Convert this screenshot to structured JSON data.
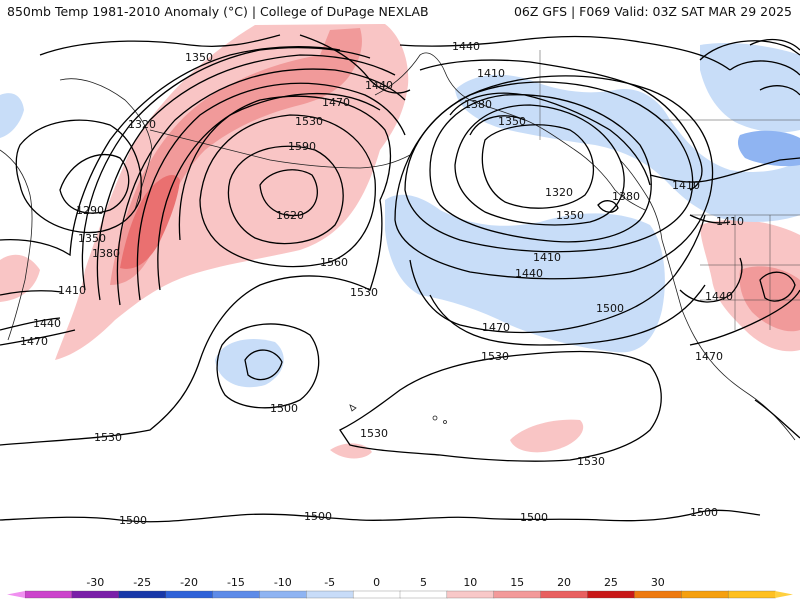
{
  "header": {
    "title_left": "850mb Temp 1981-2010 Anomaly (°C) | College of DuPage NEXLAB",
    "title_right": "06Z GFS | F069 Valid: 03Z SAT MAR 29 2025"
  },
  "contour_labels": [
    {
      "id": "l1350a",
      "text": "1350"
    },
    {
      "id": "l1440a",
      "text": "1440"
    },
    {
      "id": "l1440b",
      "text": "1440"
    },
    {
      "id": "l1470a",
      "text": "1470"
    },
    {
      "id": "l1320a",
      "text": "1320"
    },
    {
      "id": "l1530a",
      "text": "1530"
    },
    {
      "id": "l1590",
      "text": "1590"
    },
    {
      "id": "l1290",
      "text": "1290"
    },
    {
      "id": "l1620",
      "text": "1620"
    },
    {
      "id": "l1350b",
      "text": "1350"
    },
    {
      "id": "l1380a",
      "text": "1380"
    },
    {
      "id": "l1410a",
      "text": "1410"
    },
    {
      "id": "l1440c",
      "text": "1440"
    },
    {
      "id": "l1470b",
      "text": "1470"
    },
    {
      "id": "l1560",
      "text": "1560"
    },
    {
      "id": "l1530b",
      "text": "1530"
    },
    {
      "id": "l1410b",
      "text": "1410"
    },
    {
      "id": "l1380b",
      "text": "1380"
    },
    {
      "id": "l1350c",
      "text": "1350"
    },
    {
      "id": "l1320b",
      "text": "1320"
    },
    {
      "id": "l1350d",
      "text": "1350"
    },
    {
      "id": "l1380c",
      "text": "1380"
    },
    {
      "id": "l1410c",
      "text": "1410"
    },
    {
      "id": "l1440d",
      "text": "1440"
    },
    {
      "id": "l1410d",
      "text": "1410"
    },
    {
      "id": "l1410e",
      "text": "1410"
    },
    {
      "id": "l1470c",
      "text": "1470"
    },
    {
      "id": "l1500a",
      "text": "1500"
    },
    {
      "id": "l1440e",
      "text": "1440"
    },
    {
      "id": "l1470d",
      "text": "1470"
    },
    {
      "id": "l1530c",
      "text": "1530"
    },
    {
      "id": "l1500b",
      "text": "1500"
    },
    {
      "id": "l1530d",
      "text": "1530"
    },
    {
      "id": "l1530e",
      "text": "1530"
    },
    {
      "id": "l1530f",
      "text": "1530"
    },
    {
      "id": "l1500c",
      "text": "1500"
    },
    {
      "id": "l1500d",
      "text": "1500"
    },
    {
      "id": "l1500e",
      "text": "1500"
    },
    {
      "id": "l1500f",
      "text": "1500"
    }
  ],
  "colorbar": {
    "ticks": [
      "-30",
      "-25",
      "-20",
      "-15",
      "-10",
      "-5",
      "0",
      "5",
      "10",
      "15",
      "20",
      "25",
      "30"
    ],
    "colors": [
      "#cc44cc",
      "#7a1fa8",
      "#1838a8",
      "#2f62d8",
      "#5d8be8",
      "#8fb4f2",
      "#c8dcf8",
      "#ffffff",
      "#ffffff",
      "#f8c8c8",
      "#f39a9a",
      "#e86060",
      "#c81818",
      "#ee7a10",
      "#f5a010",
      "#ffc020"
    ]
  }
}
